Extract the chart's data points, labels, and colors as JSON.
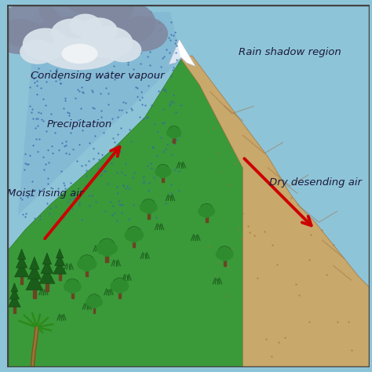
{
  "bg_color": "#8ec4d8",
  "mountain_left_color": "#3a9a3a",
  "mountain_right_color": "#c8a86b",
  "mountain_right_dark": "#b8955a",
  "snow_color": "#ffffff",
  "cloud_dark_color": "#9199aa",
  "cloud_light_color": "#d8e0e8",
  "precip_color": "#6699cc",
  "tree_trunk_color": "#6b4423",
  "tree_green": "#2e8b2e",
  "pine_green": "#1a5c1a",
  "pine_dark": "#134013",
  "grass_dark": "#1a5a1a",
  "arrow_color": "#cc0000",
  "text_color": "#1a1a3a",
  "border_color": "#444444",
  "label_condensing": "Condensing water vapour",
  "label_precipitation": "Precipitation",
  "label_moist": "Moist rising air",
  "label_rain_shadow": "Rain shadow region",
  "label_dry": "Dry desending air"
}
